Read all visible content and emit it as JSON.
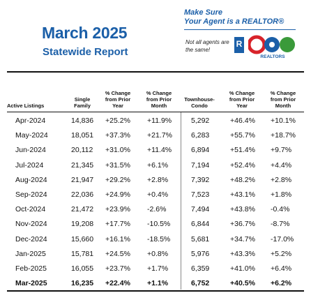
{
  "header": {
    "title": "March 2025",
    "subtitle": "Statewide Report",
    "tagline_line1": "Make Sure",
    "tagline_line2": "Your Agent is a REALTOR®",
    "not_all_agents": "Not all agents are the same!",
    "realtor_mark": "R",
    "org_logo_text": "REALTORS"
  },
  "table": {
    "columns": [
      "Active Listings",
      "Single Family",
      "% Change from Prior Year",
      "% Change from Prior Month",
      "Townhouse- Condo",
      "% Change from Prior Year",
      "% Change from Prior Month"
    ],
    "rows": [
      [
        "Apr-2024",
        "14,836",
        "+25.2%",
        "+11.9%",
        "5,292",
        "+46.4%",
        "+10.1%"
      ],
      [
        "May-2024",
        "18,051",
        "+37.3%",
        "+21.7%",
        "6,283",
        "+55.7%",
        "+18.7%"
      ],
      [
        "Jun-2024",
        "20,112",
        "+31.0%",
        "+11.4%",
        "6,894",
        "+51.4%",
        "+9.7%"
      ],
      [
        "Jul-2024",
        "21,345",
        "+31.5%",
        "+6.1%",
        "7,194",
        "+52.4%",
        "+4.4%"
      ],
      [
        "Aug-2024",
        "21,947",
        "+29.2%",
        "+2.8%",
        "7,392",
        "+48.2%",
        "+2.8%"
      ],
      [
        "Sep-2024",
        "22,036",
        "+24.9%",
        "+0.4%",
        "7,523",
        "+43.1%",
        "+1.8%"
      ],
      [
        "Oct-2024",
        "21,472",
        "+23.9%",
        "-2.6%",
        "7,494",
        "+43.8%",
        "-0.4%"
      ],
      [
        "Nov-2024",
        "19,208",
        "+17.7%",
        "-10.5%",
        "6,844",
        "+36.7%",
        "-8.7%"
      ],
      [
        "Dec-2024",
        "15,660",
        "+16.1%",
        "-18.5%",
        "5,681",
        "+34.7%",
        "-17.0%"
      ],
      [
        "Jan-2025",
        "15,781",
        "+24.5%",
        "+0.8%",
        "5,976",
        "+43.3%",
        "+5.2%"
      ],
      [
        "Feb-2025",
        "16,055",
        "+23.7%",
        "+1.7%",
        "6,359",
        "+41.0%",
        "+6.4%"
      ],
      [
        "Mar-2025",
        "16,235",
        "+22.4%",
        "+1.1%",
        "6,752",
        "+40.5%",
        "+6.2%"
      ]
    ]
  },
  "colors": {
    "brand_blue": "#1b5fa8",
    "logo_red": "#d8232a",
    "logo_green": "#3a9a3a"
  }
}
